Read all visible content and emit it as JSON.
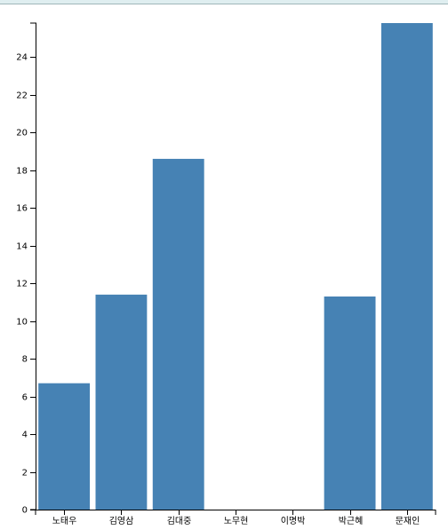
{
  "chart_data": {
    "type": "bar",
    "categories": [
      "노태우",
      "김영삼",
      "김대중",
      "노무현",
      "이명박",
      "박근혜",
      "문재인"
    ],
    "values": [
      6.7,
      11.4,
      18.6,
      0,
      0,
      11.3,
      25.8
    ],
    "y_ticks": [
      0,
      2,
      4,
      6,
      8,
      10,
      12,
      14,
      16,
      18,
      20,
      22,
      24
    ],
    "ylim": [
      0,
      25.8
    ],
    "bar_color": "#4682b4",
    "grid": false,
    "legend": "none"
  }
}
